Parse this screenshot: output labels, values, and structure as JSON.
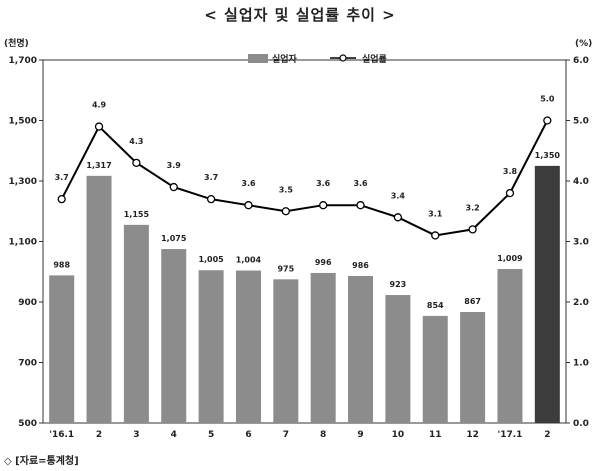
{
  "title": "< 실업자 및 실업률 추이 >",
  "source": "◇ [자료=통계청]",
  "colors": {
    "bar": "#8c8c8c",
    "bar_highlight": "#3c3c3c",
    "line": "#000000",
    "marker_fill": "#ffffff"
  },
  "chart_data": {
    "type": "bar",
    "title": "< 실업자 및 실업률 추이 >",
    "categories": [
      "'16.1",
      "2",
      "3",
      "4",
      "5",
      "6",
      "7",
      "8",
      "9",
      "10",
      "11",
      "12",
      "'17.1",
      "2"
    ],
    "y_left": {
      "unit": "(천명)",
      "ylim": [
        500,
        1700
      ],
      "ticks": [
        "500",
        "700",
        "900",
        "1,100",
        "1,300",
        "1,500",
        "1,700"
      ]
    },
    "y_right": {
      "unit": "(%)",
      "ylim": [
        0,
        6
      ],
      "ticks": [
        "0.0",
        "1.0",
        "2.0",
        "3.0",
        "4.0",
        "5.0",
        "6.0"
      ]
    },
    "series": [
      {
        "name": "실업자",
        "type": "bar",
        "axis": "left",
        "values": [
          988,
          1317,
          1155,
          1075,
          1005,
          1004,
          975,
          996,
          986,
          923,
          854,
          867,
          1009,
          1350
        ],
        "labels": [
          "988",
          "1,317",
          "1,155",
          "1,075",
          "1,005",
          "1,004",
          "975",
          "996",
          "986",
          "923",
          "854",
          "867",
          "1,009",
          "1,350"
        ],
        "highlight_index": 13
      },
      {
        "name": "실업률",
        "type": "line",
        "axis": "right",
        "values": [
          3.7,
          4.9,
          4.3,
          3.9,
          3.7,
          3.6,
          3.5,
          3.6,
          3.6,
          3.4,
          3.1,
          3.2,
          3.8,
          5.0
        ],
        "labels": [
          "3.7",
          "4.9",
          "4.3",
          "3.9",
          "3.7",
          "3.6",
          "3.5",
          "3.6",
          "3.6",
          "3.4",
          "3.1",
          "3.2",
          "3.8",
          "5.0"
        ]
      }
    ],
    "legend": {
      "placement": "top-right",
      "entries": [
        "실업자",
        "실업률"
      ]
    },
    "grid": false
  }
}
